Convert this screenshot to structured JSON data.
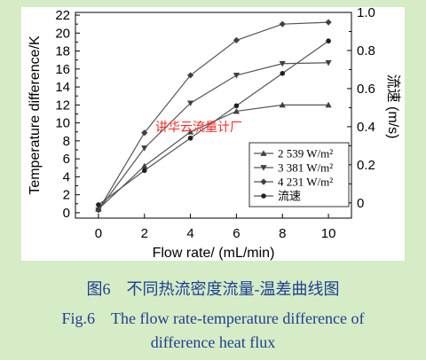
{
  "chart_data": {
    "type": "line",
    "xlabel": "Flow rate/ (mL/min)",
    "ylabel_left": "Temperature difference/K",
    "ylabel_right": "流速 (m/s)",
    "x": [
      0,
      2,
      4,
      6,
      8,
      10
    ],
    "xlim": [
      -1,
      11
    ],
    "xticks": [
      0,
      2,
      4,
      6,
      8,
      10
    ],
    "ylim_left": [
      -0.6,
      22.3
    ],
    "yticks_left": [
      0,
      2,
      4,
      6,
      8,
      10,
      12,
      14,
      16,
      18,
      20,
      22
    ],
    "ylim_right": [
      -0.08,
      1.0
    ],
    "yticks_right": [
      0,
      0.2,
      0.4,
      0.6,
      0.8,
      1.0
    ],
    "yticklabels_right": [
      "0",
      "0.2",
      "0.4",
      "0.6",
      "0.8",
      "1.0"
    ],
    "series": [
      {
        "name": "2 539 W/m²",
        "axis": "left",
        "marker": "triangle-up",
        "values": [
          0.4,
          5.2,
          9.0,
          11.3,
          12.0,
          12.0
        ]
      },
      {
        "name": "3 381 W/m²",
        "axis": "left",
        "marker": "triangle-down",
        "values": [
          0.3,
          7.2,
          12.2,
          15.3,
          16.6,
          16.7
        ]
      },
      {
        "name": "4 231 W/m²",
        "axis": "left",
        "marker": "diamond",
        "values": [
          0.3,
          8.9,
          15.3,
          19.2,
          21.0,
          21.2
        ]
      },
      {
        "name": "流速",
        "axis": "right",
        "marker": "circle",
        "values": [
          -0.01,
          0.17,
          0.34,
          0.51,
          0.68,
          0.85
        ]
      }
    ],
    "legend_position": "bottom-right",
    "watermark": "讲华云流量计厂",
    "colors": {
      "line": "#555555",
      "marker": "#404040",
      "panel": "#ffffff",
      "background": "#d5ecc7",
      "caption": "#1f3f8f",
      "watermark": "#ff2a2a"
    }
  },
  "caption": {
    "cn": "图6　不同热流密度流量-温差曲线图",
    "en_line1": "Fig.6　The flow rate-temperature difference of",
    "en_line2": "difference heat flux"
  }
}
